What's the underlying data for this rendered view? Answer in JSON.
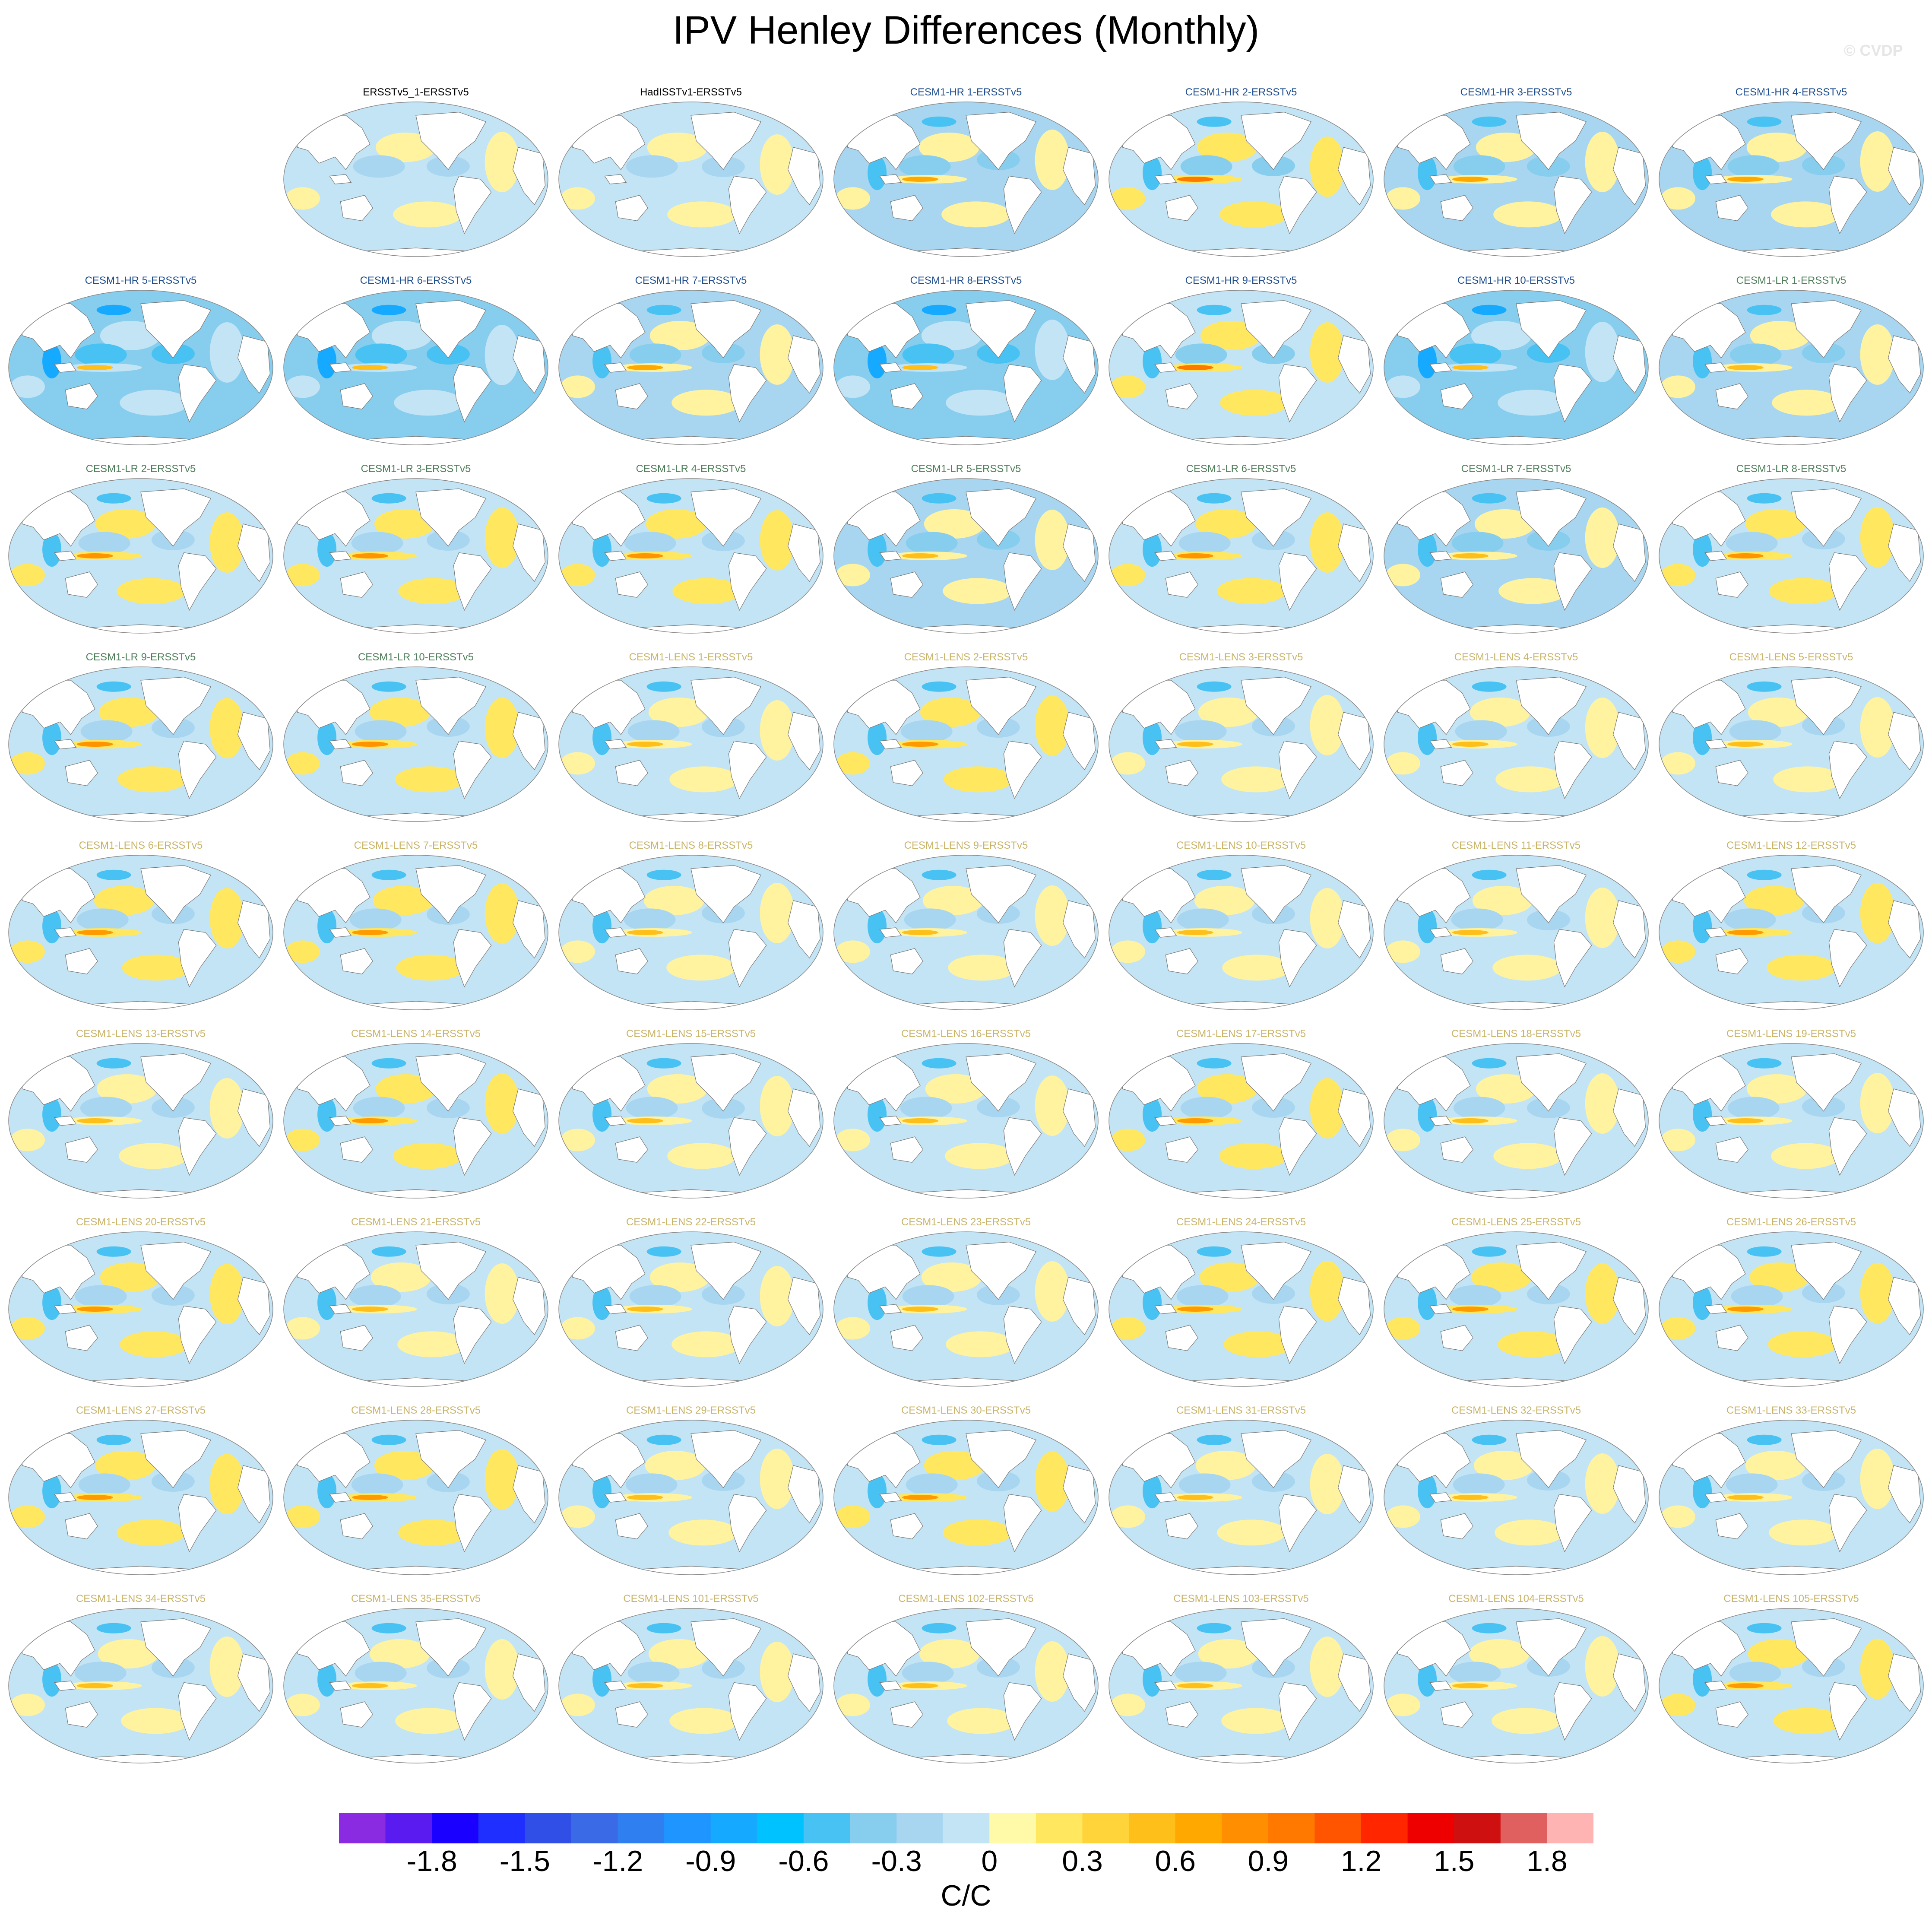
{
  "title": "IPV Henley Differences (Monthly)",
  "credit": "© CVDP",
  "chart_data": {
    "type": "heatmap",
    "title": "IPV Henley Differences (Monthly)",
    "projection": "Robinson (global, Pacific-centered)",
    "panels": [
      {
        "name": "ERSSTv5_1-ERSSTv5",
        "color": "#000000",
        "style": "near-zero"
      },
      {
        "name": "HadISSTv1-ERSSTv5",
        "color": "#000000",
        "style": "near-zero"
      },
      {
        "name": "CESM1-HR 1-ERSSTv5",
        "color": "#1f4f8f",
        "style": "hr-cool"
      },
      {
        "name": "CESM1-HR 2-ERSSTv5",
        "color": "#1f4f8f",
        "style": "hr-warm"
      },
      {
        "name": "CESM1-HR 3-ERSSTv5",
        "color": "#1f4f8f",
        "style": "hr-cool"
      },
      {
        "name": "CESM1-HR 4-ERSSTv5",
        "color": "#1f4f8f",
        "style": "hr-cool"
      },
      {
        "name": "CESM1-HR 5-ERSSTv5",
        "color": "#1f4f8f",
        "style": "hr-cold"
      },
      {
        "name": "CESM1-HR 6-ERSSTv5",
        "color": "#1f4f8f",
        "style": "hr-cold"
      },
      {
        "name": "CESM1-HR 7-ERSSTv5",
        "color": "#1f4f8f",
        "style": "hr-cool"
      },
      {
        "name": "CESM1-HR 8-ERSSTv5",
        "color": "#1f4f8f",
        "style": "hr-cold"
      },
      {
        "name": "CESM1-HR 9-ERSSTv5",
        "color": "#1f4f8f",
        "style": "hr-warm"
      },
      {
        "name": "CESM1-HR 10-ERSSTv5",
        "color": "#1f4f8f",
        "style": "hr-cold"
      },
      {
        "name": "CESM1-LR 1-ERSSTv5",
        "color": "#4f7f5a",
        "style": "lr-cool"
      },
      {
        "name": "CESM1-LR 2-ERSSTv5",
        "color": "#4f7f5a",
        "style": "lr-warm"
      },
      {
        "name": "CESM1-LR 3-ERSSTv5",
        "color": "#4f7f5a",
        "style": "lr-warm"
      },
      {
        "name": "CESM1-LR 4-ERSSTv5",
        "color": "#4f7f5a",
        "style": "lr-warm"
      },
      {
        "name": "CESM1-LR 5-ERSSTv5",
        "color": "#4f7f5a",
        "style": "lr-cool"
      },
      {
        "name": "CESM1-LR 6-ERSSTv5",
        "color": "#4f7f5a",
        "style": "lr-warm"
      },
      {
        "name": "CESM1-LR 7-ERSSTv5",
        "color": "#4f7f5a",
        "style": "lr-cool"
      },
      {
        "name": "CESM1-LR 8-ERSSTv5",
        "color": "#4f7f5a",
        "style": "lr-warm"
      },
      {
        "name": "CESM1-LR 9-ERSSTv5",
        "color": "#4f7f5a",
        "style": "lr-warm"
      },
      {
        "name": "CESM1-LR 10-ERSSTv5",
        "color": "#4f7f5a",
        "style": "lr-warm"
      },
      {
        "name": "CESM1-LENS 1-ERSSTv5",
        "color": "#c9b46a",
        "style": "lens"
      },
      {
        "name": "CESM1-LENS 2-ERSSTv5",
        "color": "#c9b46a",
        "style": "lens-warm"
      },
      {
        "name": "CESM1-LENS 3-ERSSTv5",
        "color": "#c9b46a",
        "style": "lens"
      },
      {
        "name": "CESM1-LENS 4-ERSSTv5",
        "color": "#c9b46a",
        "style": "lens"
      },
      {
        "name": "CESM1-LENS 5-ERSSTv5",
        "color": "#c9b46a",
        "style": "lens"
      },
      {
        "name": "CESM1-LENS 6-ERSSTv5",
        "color": "#c9b46a",
        "style": "lens-warm"
      },
      {
        "name": "CESM1-LENS 7-ERSSTv5",
        "color": "#c9b46a",
        "style": "lens-warm"
      },
      {
        "name": "CESM1-LENS 8-ERSSTv5",
        "color": "#c9b46a",
        "style": "lens"
      },
      {
        "name": "CESM1-LENS 9-ERSSTv5",
        "color": "#c9b46a",
        "style": "lens"
      },
      {
        "name": "CESM1-LENS 10-ERSSTv5",
        "color": "#c9b46a",
        "style": "lens"
      },
      {
        "name": "CESM1-LENS 11-ERSSTv5",
        "color": "#c9b46a",
        "style": "lens"
      },
      {
        "name": "CESM1-LENS 12-ERSSTv5",
        "color": "#c9b46a",
        "style": "lens-warm"
      },
      {
        "name": "CESM1-LENS 13-ERSSTv5",
        "color": "#c9b46a",
        "style": "lens"
      },
      {
        "name": "CESM1-LENS 14-ERSSTv5",
        "color": "#c9b46a",
        "style": "lens-warm"
      },
      {
        "name": "CESM1-LENS 15-ERSSTv5",
        "color": "#c9b46a",
        "style": "lens"
      },
      {
        "name": "CESM1-LENS 16-ERSSTv5",
        "color": "#c9b46a",
        "style": "lens"
      },
      {
        "name": "CESM1-LENS 17-ERSSTv5",
        "color": "#c9b46a",
        "style": "lens-warm"
      },
      {
        "name": "CESM1-LENS 18-ERSSTv5",
        "color": "#c9b46a",
        "style": "lens"
      },
      {
        "name": "CESM1-LENS 19-ERSSTv5",
        "color": "#c9b46a",
        "style": "lens"
      },
      {
        "name": "CESM1-LENS 20-ERSSTv5",
        "color": "#c9b46a",
        "style": "lens-warm"
      },
      {
        "name": "CESM1-LENS 21-ERSSTv5",
        "color": "#c9b46a",
        "style": "lens"
      },
      {
        "name": "CESM1-LENS 22-ERSSTv5",
        "color": "#c9b46a",
        "style": "lens"
      },
      {
        "name": "CESM1-LENS 23-ERSSTv5",
        "color": "#c9b46a",
        "style": "lens"
      },
      {
        "name": "CESM1-LENS 24-ERSSTv5",
        "color": "#c9b46a",
        "style": "lens-warm"
      },
      {
        "name": "CESM1-LENS 25-ERSSTv5",
        "color": "#c9b46a",
        "style": "lens-warm"
      },
      {
        "name": "CESM1-LENS 26-ERSSTv5",
        "color": "#c9b46a",
        "style": "lens-warm"
      },
      {
        "name": "CESM1-LENS 27-ERSSTv5",
        "color": "#c9b46a",
        "style": "lens-warm"
      },
      {
        "name": "CESM1-LENS 28-ERSSTv5",
        "color": "#c9b46a",
        "style": "lens-warm"
      },
      {
        "name": "CESM1-LENS 29-ERSSTv5",
        "color": "#c9b46a",
        "style": "lens"
      },
      {
        "name": "CESM1-LENS 30-ERSSTv5",
        "color": "#c9b46a",
        "style": "lens-warm"
      },
      {
        "name": "CESM1-LENS 31-ERSSTv5",
        "color": "#c9b46a",
        "style": "lens"
      },
      {
        "name": "CESM1-LENS 32-ERSSTv5",
        "color": "#c9b46a",
        "style": "lens"
      },
      {
        "name": "CESM1-LENS 33-ERSSTv5",
        "color": "#c9b46a",
        "style": "lens"
      },
      {
        "name": "CESM1-LENS 34-ERSSTv5",
        "color": "#c9b46a",
        "style": "lens"
      },
      {
        "name": "CESM1-LENS 35-ERSSTv5",
        "color": "#c9b46a",
        "style": "lens"
      },
      {
        "name": "CESM1-LENS 101-ERSSTv5",
        "color": "#c9b46a",
        "style": "lens"
      },
      {
        "name": "CESM1-LENS 102-ERSSTv5",
        "color": "#c9b46a",
        "style": "lens"
      },
      {
        "name": "CESM1-LENS 103-ERSSTv5",
        "color": "#c9b46a",
        "style": "lens"
      },
      {
        "name": "CESM1-LENS 104-ERSSTv5",
        "color": "#c9b46a",
        "style": "lens"
      },
      {
        "name": "CESM1-LENS 105-ERSSTv5",
        "color": "#c9b46a",
        "style": "lens-warm"
      }
    ],
    "colorbar": {
      "units": "C/C",
      "levels": [
        -1.9,
        -1.8,
        -1.7,
        -1.6,
        -1.5,
        -1.4,
        -1.3,
        -1.2,
        -1.1,
        -1.0,
        -0.9,
        -0.8,
        -0.7,
        -0.6,
        -0.5,
        -0.4,
        -0.3,
        -0.2,
        -0.1,
        0,
        0.1,
        0.2,
        0.3,
        0.4,
        0.5,
        0.6,
        0.7,
        0.8,
        0.9,
        1.0,
        1.1,
        1.2,
        1.3,
        1.4,
        1.5,
        1.6,
        1.7,
        1.8,
        1.9
      ],
      "tick_labels": [
        "-1.8",
        "-1.5",
        "-1.2",
        "-0.9",
        "-0.6",
        "-0.3",
        "0",
        "0.3",
        "0.6",
        "0.9",
        "1.2",
        "1.5",
        "1.8"
      ],
      "tick_values": [
        -1.8,
        -1.5,
        -1.2,
        -0.9,
        -0.6,
        -0.3,
        0,
        0.3,
        0.6,
        0.9,
        1.2,
        1.5,
        1.8
      ],
      "colors": [
        "#8a2be2",
        "#5a1bf0",
        "#1a00ff",
        "#1f2fff",
        "#2f4fe6",
        "#3a6ae6",
        "#2f7ff0",
        "#1f96ff",
        "#15aaff",
        "#00c2ff",
        "#48c2f2",
        "#87cdee",
        "#a8d6f0",
        "#c3e4f5",
        "#fffaa8",
        "#ffe760",
        "#ffd43a",
        "#ffbf1a",
        "#ffa800",
        "#ff8f00",
        "#ff7800",
        "#ff5400",
        "#ff2600",
        "#ee0000",
        "#cf1010",
        "#e06060",
        "#ffb4b4"
      ]
    }
  }
}
